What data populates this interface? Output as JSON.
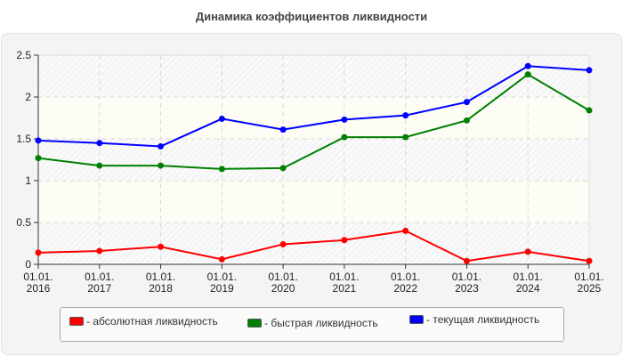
{
  "title": "Динамика коэффициентов ликвидности",
  "chart_data": {
    "type": "line",
    "title": "Динамика коэффициентов ликвидности",
    "xlabel": "",
    "ylabel": "",
    "categories": [
      "01.01. 2016",
      "01.01. 2017",
      "01.01. 2018",
      "01.01. 2019",
      "01.01. 2020",
      "01.01. 2021",
      "01.01. 2022",
      "01.01. 2023",
      "01.01. 2024",
      "01.01. 2025"
    ],
    "x_tick_lines": [
      [
        "01.01.",
        "2016"
      ],
      [
        "01.01.",
        "2017"
      ],
      [
        "01.01.",
        "2018"
      ],
      [
        "01.01.",
        "2019"
      ],
      [
        "01.01.",
        "2020"
      ],
      [
        "01.01.",
        "2021"
      ],
      [
        "01.01.",
        "2022"
      ],
      [
        "01.01.",
        "2023"
      ],
      [
        "01.01.",
        "2024"
      ],
      [
        "01.01.",
        "2025"
      ]
    ],
    "y_ticks": [
      "0",
      "0.5",
      "1",
      "1.5",
      "2",
      "2.5"
    ],
    "ylim": [
      0,
      2.5
    ],
    "grid": true,
    "legend_position": "bottom",
    "series": [
      {
        "name": "абсолютная ликвидность",
        "color": "#ff0000",
        "values": [
          0.14,
          0.16,
          0.21,
          0.06,
          0.24,
          0.29,
          0.4,
          0.04,
          0.15,
          0.04
        ]
      },
      {
        "name": "быстрая ликвидность",
        "color": "#008000",
        "values": [
          1.27,
          1.18,
          1.18,
          1.14,
          1.15,
          1.52,
          1.52,
          1.72,
          2.27,
          1.84
        ]
      },
      {
        "name": "текущая ликвидность",
        "color": "#0000ff",
        "values": [
          1.48,
          1.45,
          1.41,
          1.74,
          1.61,
          1.73,
          1.78,
          1.94,
          2.37,
          2.32
        ]
      }
    ]
  },
  "legend": {
    "items": [
      {
        "label": "- абсолютная ликвидность",
        "color": "#ff0000"
      },
      {
        "label": "- быстрая ликвидность",
        "color": "#008000"
      },
      {
        "label": "- текущая ликвидность",
        "color": "#0000ff"
      }
    ]
  }
}
